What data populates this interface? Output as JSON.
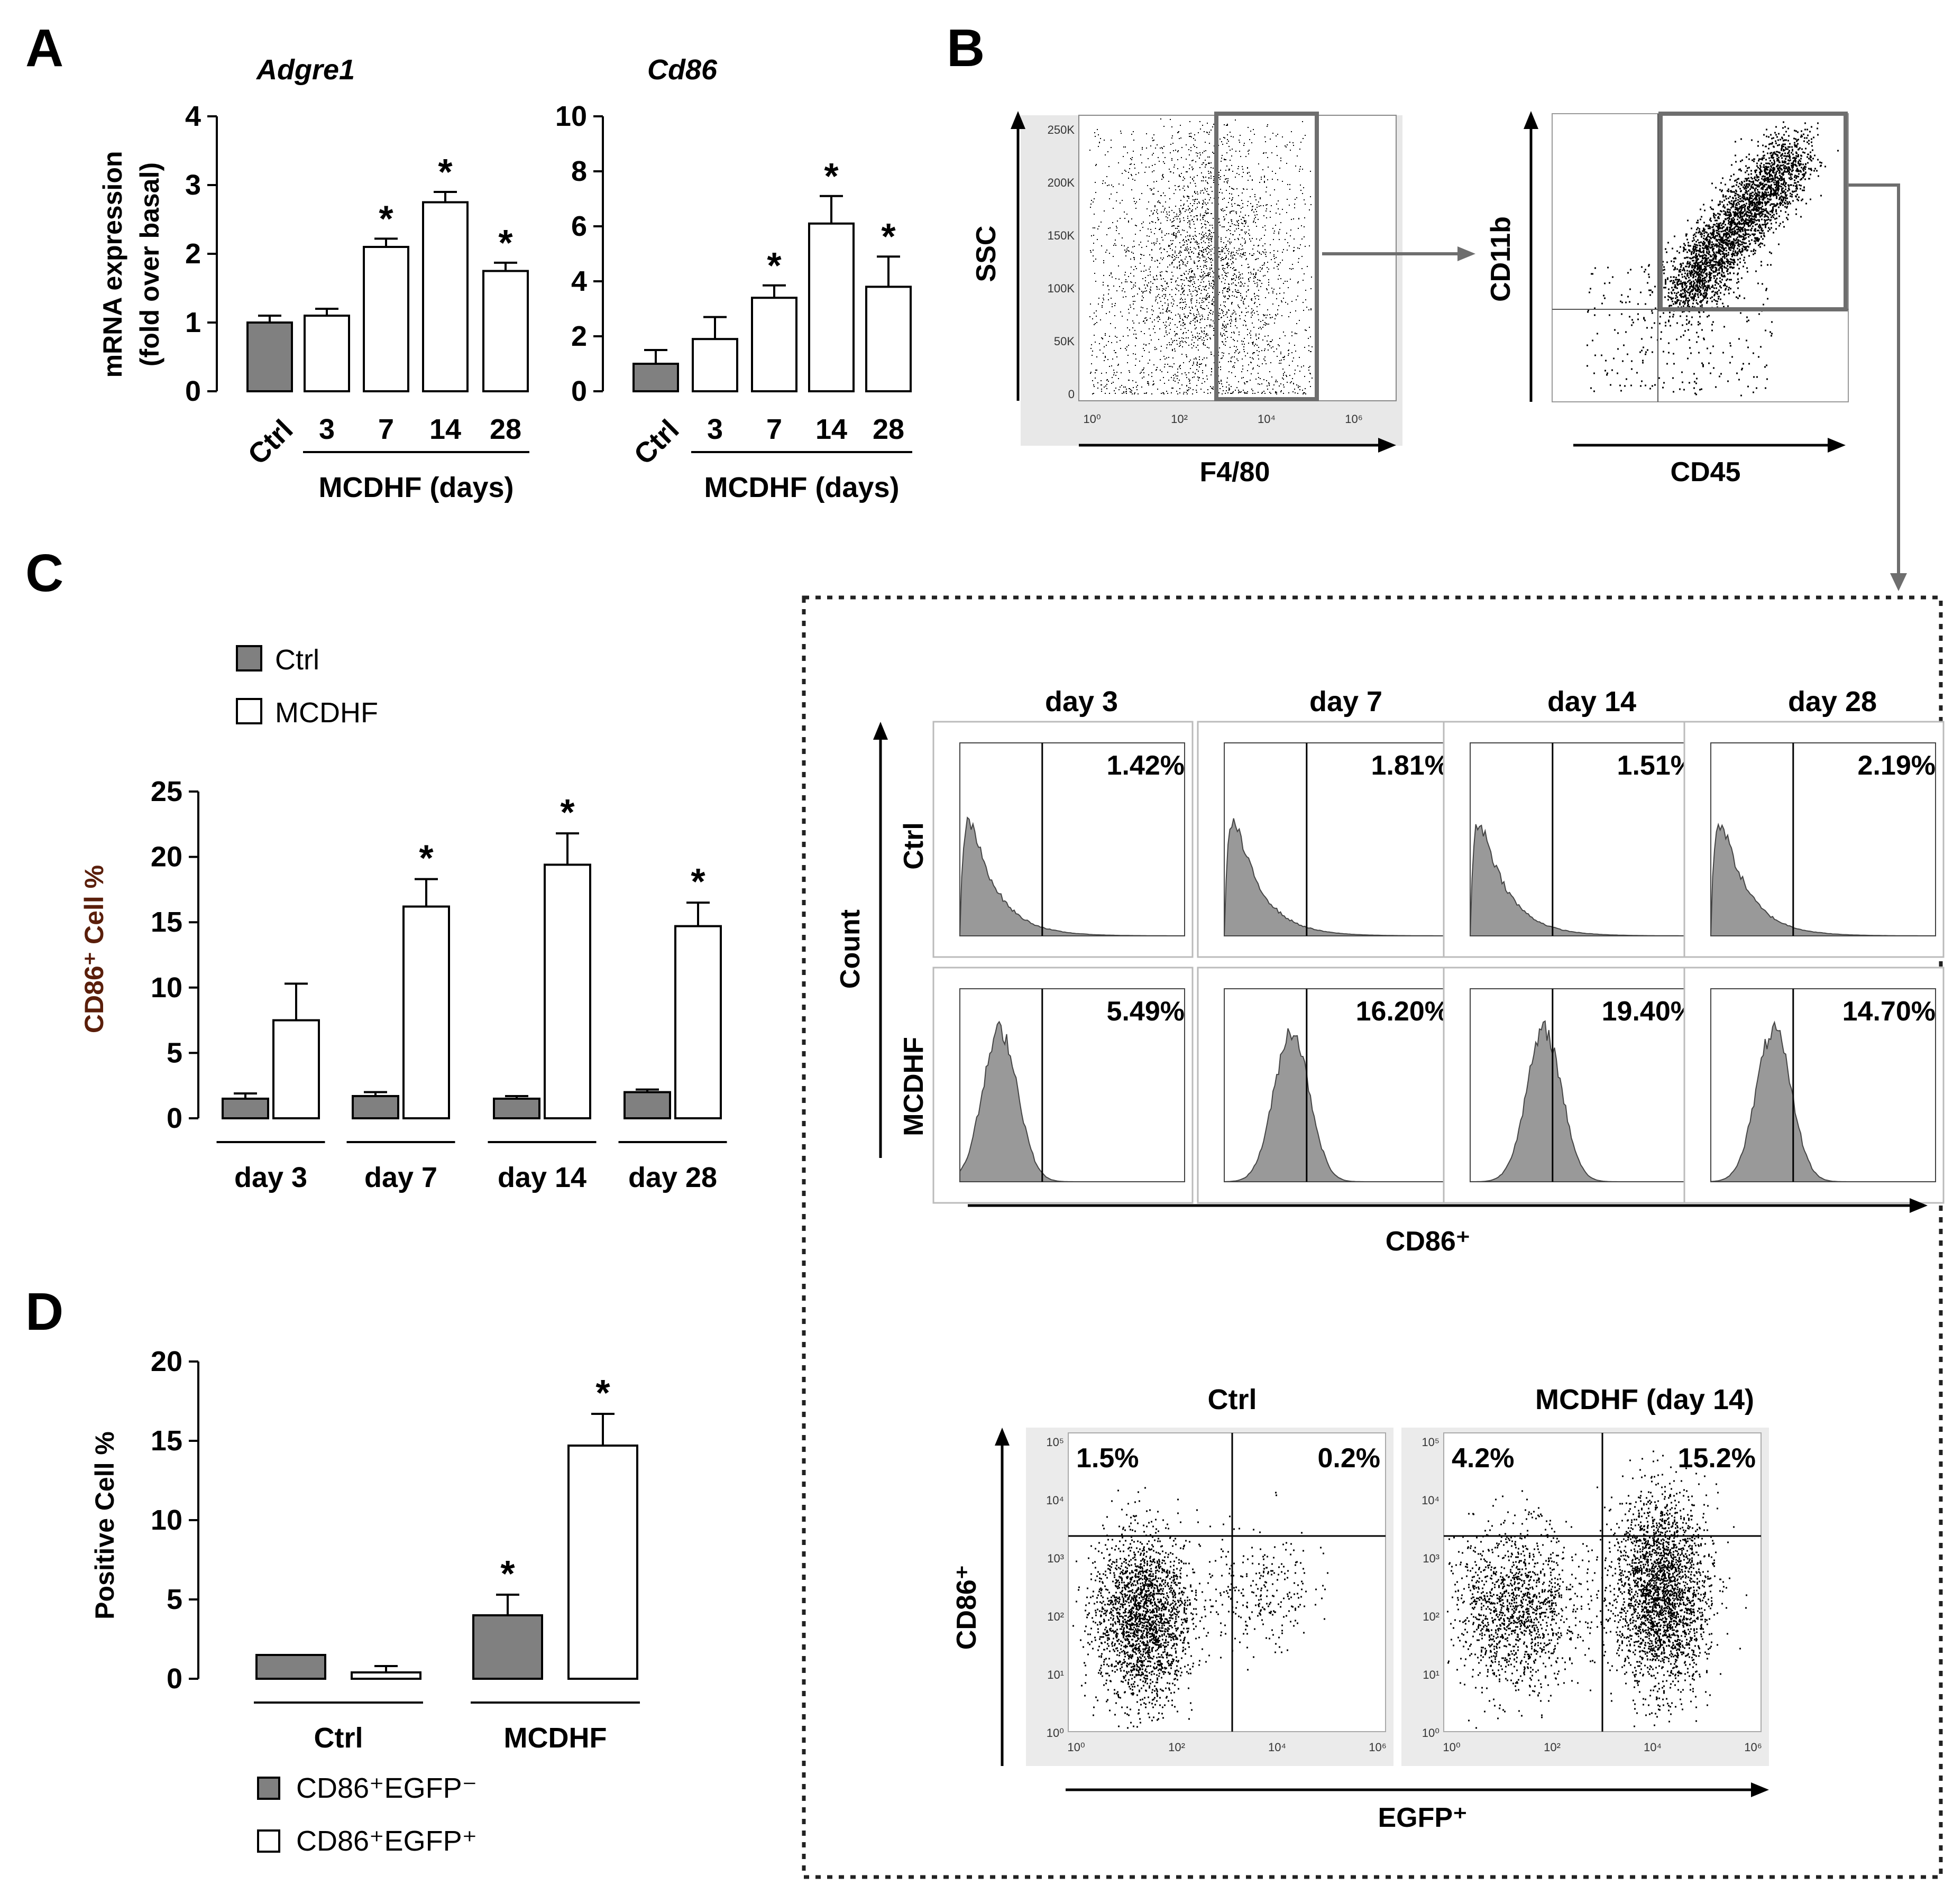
{
  "panel_labels": [
    "A",
    "B",
    "C",
    "D"
  ],
  "colors": {
    "ctrl_fill": "#808080",
    "mcdhf_fill": "#ffffff",
    "axis": "#000000",
    "gate": "#6e6e6e",
    "ylabel_c": "#5a1e0a"
  },
  "chart_data": [
    {
      "id": "A1",
      "type": "bar",
      "title": "Adgre1",
      "ylabel": "mRNA expression",
      "ylabel2": "(fold over basal)",
      "yticks": [
        0,
        1,
        2,
        3,
        4
      ],
      "ylim": [
        0,
        4
      ],
      "categories": [
        "Ctrl",
        "3",
        "7",
        "14",
        "28"
      ],
      "values": [
        1.0,
        1.1,
        2.1,
        2.75,
        1.75
      ],
      "errors": [
        0.1,
        0.1,
        0.12,
        0.15,
        0.12
      ],
      "significant": [
        false,
        false,
        true,
        true,
        true
      ],
      "group_label": "MCDHF (days)",
      "star": "*"
    },
    {
      "id": "A2",
      "type": "bar",
      "title": "Cd86",
      "yticks": [
        0,
        2,
        4,
        6,
        8,
        10
      ],
      "ylim": [
        0,
        10
      ],
      "categories": [
        "Ctrl",
        "3",
        "7",
        "14",
        "28"
      ],
      "values": [
        1.0,
        1.9,
        3.4,
        6.1,
        3.8
      ],
      "errors": [
        0.5,
        0.8,
        0.45,
        1.0,
        1.1
      ],
      "significant": [
        false,
        false,
        true,
        true,
        true
      ],
      "group_label": "MCDHF (days)",
      "star": "*"
    },
    {
      "id": "C",
      "type": "bar",
      "ylabel": "CD86⁺ Cell %",
      "yticks": [
        0,
        5,
        10,
        15,
        20,
        25
      ],
      "ylim": [
        0,
        25
      ],
      "categories": [
        "day 3",
        "day 7",
        "day 14",
        "day 28"
      ],
      "series": [
        {
          "name": "Ctrl",
          "values": [
            1.5,
            1.7,
            1.5,
            2.0
          ],
          "errors": [
            0.4,
            0.3,
            0.2,
            0.2
          ],
          "significant": [
            false,
            false,
            false,
            false
          ]
        },
        {
          "name": "MCDHF",
          "values": [
            7.5,
            16.2,
            19.4,
            14.7
          ],
          "errors": [
            2.8,
            2.1,
            2.4,
            1.8
          ],
          "significant": [
            false,
            true,
            true,
            true
          ]
        }
      ],
      "star": "*"
    },
    {
      "id": "D",
      "type": "bar",
      "ylabel": "Positive Cell %",
      "yticks": [
        0,
        5,
        10,
        15,
        20
      ],
      "ylim": [
        0,
        20
      ],
      "categories": [
        "Ctrl",
        "MCDHF"
      ],
      "series": [
        {
          "name": "CD86⁺EGFP⁻",
          "values": [
            1.5,
            4.0
          ],
          "errors": [
            0.0,
            1.3
          ],
          "significant": [
            false,
            true
          ]
        },
        {
          "name": "CD86⁺EGFP⁺",
          "values": [
            0.4,
            14.7
          ],
          "errors": [
            0.4,
            2.0
          ],
          "significant": [
            false,
            true
          ]
        }
      ],
      "star": "*"
    },
    {
      "id": "B1",
      "type": "scatter",
      "xlabel": "F4/80",
      "ylabel": "SSC",
      "yticks": [
        "0",
        "50K",
        "100K",
        "150K",
        "200K",
        "250K"
      ],
      "xticks": [
        "10⁰",
        "10²",
        "10⁴",
        "10⁶"
      ]
    },
    {
      "id": "B2",
      "type": "scatter",
      "xlabel": "CD45",
      "ylabel": "CD11b"
    },
    {
      "id": "C_hist",
      "type": "histogram",
      "columns": [
        "day 3",
        "day 7",
        "day 14",
        "day 28"
      ],
      "rows": [
        "Ctrl",
        "MCDHF"
      ],
      "percentages": [
        [
          "1.42%",
          "1.81%",
          "1.51%",
          "2.19%"
        ],
        [
          "5.49%",
          "16.20%",
          "19.40%",
          "14.70%"
        ]
      ],
      "ylabel": "Count",
      "xlabel": "CD86⁺"
    },
    {
      "id": "D_scatter",
      "type": "scatter",
      "panels": [
        "Ctrl",
        "MCDHF (day 14)"
      ],
      "quadrants": [
        [
          "1.5%",
          "0.2%"
        ],
        [
          "4.2%",
          "15.2%"
        ]
      ],
      "ylabel": "CD86⁺",
      "xlabel": "EGFP⁺",
      "yticks": [
        "10⁵",
        "10⁴",
        "10³",
        "10²",
        "10¹",
        "10⁰"
      ],
      "xticks": [
        "10⁰",
        "10²",
        "10⁴",
        "10⁶"
      ]
    }
  ]
}
